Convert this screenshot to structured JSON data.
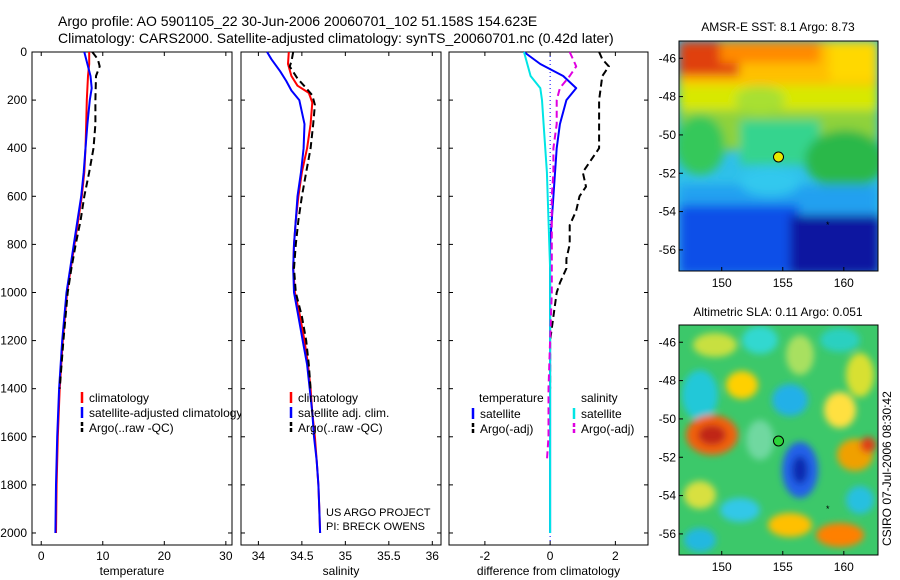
{
  "header": {
    "line1": "Argo profile: AO 5901105_22 30-Jun-2006 20060701_102 51.158S 154.623E",
    "line2": "Climatology: CARS2000. Satellite-adjusted climatology: synTS_20060701.nc (0.42d later)"
  },
  "credit": {
    "line1": "US ARGO PROJECT",
    "line2": "PI: BRECK OWENS"
  },
  "stamp": "CSIRO 07-Jul-2006 08:30:42",
  "colors": {
    "climatology": "#ff0000",
    "satellite": "#0000ff",
    "argo": "#000000",
    "sat_diff": "#00e5e5",
    "argo_diff": "#e000e0"
  },
  "chart_data": [
    {
      "id": "temperature",
      "type": "line",
      "xlabel": "temperature",
      "xlim": [
        -1.5,
        31
      ],
      "ylim": [
        2050,
        0
      ],
      "xticks": [
        0,
        10,
        20,
        30
      ],
      "yticks": [
        0,
        200,
        400,
        600,
        800,
        1000,
        1200,
        1400,
        1600,
        1800,
        2000
      ],
      "legend": {
        "items": [
          "climatology",
          "satellite-adjusted climatology",
          "Argo(..raw -QC)"
        ]
      },
      "series": [
        {
          "name": "climatology",
          "style": "solid",
          "color": "#ff0000",
          "points": [
            [
              7.8,
              0
            ],
            [
              7.8,
              50
            ],
            [
              7.6,
              100
            ],
            [
              7.4,
              200
            ],
            [
              7.3,
              300
            ],
            [
              7.2,
              400
            ],
            [
              7.0,
              500
            ],
            [
              6.6,
              600
            ],
            [
              6.0,
              700
            ],
            [
              5.4,
              800
            ],
            [
              4.8,
              900
            ],
            [
              4.2,
              1000
            ],
            [
              3.5,
              1200
            ],
            [
              3.0,
              1400
            ],
            [
              2.7,
              1600
            ],
            [
              2.5,
              1800
            ],
            [
              2.4,
              2000
            ]
          ]
        },
        {
          "name": "satellite-adjusted climatology",
          "style": "solid",
          "color": "#0000ff",
          "points": [
            [
              7.0,
              0
            ],
            [
              7.5,
              50
            ],
            [
              8.0,
              100
            ],
            [
              8.2,
              150
            ],
            [
              7.9,
              200
            ],
            [
              7.5,
              300
            ],
            [
              7.2,
              400
            ],
            [
              6.9,
              500
            ],
            [
              6.5,
              600
            ],
            [
              5.9,
              700
            ],
            [
              5.3,
              800
            ],
            [
              4.7,
              900
            ],
            [
              4.1,
              1000
            ],
            [
              3.4,
              1200
            ],
            [
              2.9,
              1400
            ],
            [
              2.6,
              1600
            ],
            [
              2.4,
              1800
            ],
            [
              2.3,
              2000
            ]
          ]
        },
        {
          "name": "Argo(..raw -QC)",
          "style": "dashed",
          "color": "#000000",
          "points": [
            [
              8.3,
              0
            ],
            [
              9.2,
              30
            ],
            [
              9.5,
              60
            ],
            [
              8.9,
              100
            ],
            [
              8.8,
              200
            ],
            [
              8.8,
              300
            ],
            [
              8.5,
              400
            ],
            [
              7.8,
              500
            ],
            [
              7.0,
              600
            ],
            [
              6.4,
              700
            ],
            [
              5.6,
              800
            ],
            [
              4.9,
              900
            ],
            [
              4.3,
              1000
            ],
            [
              3.6,
              1200
            ],
            [
              3.0,
              1400
            ]
          ]
        }
      ]
    },
    {
      "id": "salinity",
      "type": "line",
      "xlabel": "salinity",
      "xlim": [
        33.8,
        36.1
      ],
      "ylim": [
        2050,
        0
      ],
      "xticks": [
        34,
        34.5,
        35,
        35.5,
        36
      ],
      "yticks": [
        0,
        200,
        400,
        600,
        800,
        1000,
        1200,
        1400,
        1600,
        1800,
        2000
      ],
      "legend": {
        "items": [
          "climatology",
          "satellite adj. clim.",
          "Argo(..raw -QC)"
        ]
      },
      "series": [
        {
          "name": "climatology",
          "style": "solid",
          "color": "#ff0000",
          "points": [
            [
              34.35,
              0
            ],
            [
              34.34,
              50
            ],
            [
              34.38,
              100
            ],
            [
              34.45,
              140
            ],
            [
              34.58,
              170
            ],
            [
              34.62,
              210
            ],
            [
              34.6,
              300
            ],
            [
              34.56,
              400
            ],
            [
              34.5,
              500
            ],
            [
              34.46,
              600
            ],
            [
              34.43,
              700
            ],
            [
              34.41,
              800
            ],
            [
              34.4,
              900
            ],
            [
              34.42,
              1000
            ],
            [
              34.48,
              1100
            ],
            [
              34.53,
              1200
            ],
            [
              34.57,
              1300
            ],
            [
              34.6,
              1400
            ],
            [
              34.62,
              1500
            ],
            [
              34.65,
              1600
            ],
            [
              34.67,
              1700
            ],
            [
              34.69,
              1800
            ],
            [
              34.7,
              1900
            ],
            [
              34.71,
              2000
            ]
          ]
        },
        {
          "name": "satellite adj. clim.",
          "style": "solid",
          "color": "#0000ff",
          "points": [
            [
              34.1,
              0
            ],
            [
              34.15,
              30
            ],
            [
              34.25,
              80
            ],
            [
              34.32,
              120
            ],
            [
              34.38,
              160
            ],
            [
              34.47,
              200
            ],
            [
              34.53,
              300
            ],
            [
              34.52,
              400
            ],
            [
              34.49,
              500
            ],
            [
              34.45,
              600
            ],
            [
              34.43,
              700
            ],
            [
              34.41,
              800
            ],
            [
              34.4,
              900
            ],
            [
              34.41,
              1000
            ],
            [
              34.46,
              1100
            ],
            [
              34.51,
              1200
            ],
            [
              34.56,
              1300
            ],
            [
              34.59,
              1400
            ],
            [
              34.62,
              1500
            ],
            [
              34.64,
              1600
            ],
            [
              34.67,
              1700
            ],
            [
              34.69,
              1800
            ],
            [
              34.7,
              1900
            ],
            [
              34.71,
              2000
            ]
          ]
        },
        {
          "name": "Argo(..raw -QC)",
          "style": "dashed",
          "color": "#000000",
          "points": [
            [
              34.4,
              0
            ],
            [
              34.38,
              40
            ],
            [
              34.36,
              60
            ],
            [
              34.45,
              110
            ],
            [
              34.55,
              150
            ],
            [
              34.62,
              180
            ],
            [
              34.65,
              220
            ],
            [
              34.63,
              300
            ],
            [
              34.6,
              400
            ],
            [
              34.55,
              500
            ],
            [
              34.5,
              600
            ],
            [
              34.46,
              700
            ],
            [
              34.43,
              800
            ],
            [
              34.41,
              900
            ],
            [
              34.43,
              1000
            ],
            [
              34.5,
              1100
            ],
            [
              34.55,
              1200
            ],
            [
              34.58,
              1300
            ],
            [
              34.6,
              1400
            ]
          ]
        }
      ]
    },
    {
      "id": "difference",
      "type": "line",
      "xlabel": "difference from climatology",
      "xlim": [
        -3.1,
        3.0
      ],
      "ylim": [
        2050,
        0
      ],
      "xticks": [
        -2,
        0,
        2
      ],
      "yticks": [
        0,
        200,
        400,
        600,
        800,
        1000,
        1200,
        1400,
        1600,
        1800,
        2000
      ],
      "legend": {
        "temperature_header": "temperature",
        "salinity_header": "salinity",
        "temperature_items": [
          "satellite",
          "Argo(-adj)"
        ],
        "salinity_items": [
          "satellite",
          "Argo(-adj)"
        ]
      },
      "series": [
        {
          "name": "temperature satellite",
          "style": "solid",
          "color": "#0000ff",
          "points": [
            [
              -0.8,
              0
            ],
            [
              -0.3,
              50
            ],
            [
              0.4,
              100
            ],
            [
              0.8,
              150
            ],
            [
              0.5,
              200
            ],
            [
              0.3,
              300
            ],
            [
              0.2,
              400
            ],
            [
              0.1,
              600
            ],
            [
              0.0,
              800
            ],
            [
              0.0,
              1000
            ],
            [
              0.0,
              1400
            ],
            [
              0.0,
              2000
            ]
          ]
        },
        {
          "name": "temperature Argo(-adj)",
          "style": "dashed",
          "color": "#000000",
          "points": [
            [
              1.5,
              0
            ],
            [
              1.6,
              30
            ],
            [
              1.8,
              60
            ],
            [
              1.6,
              100
            ],
            [
              1.55,
              150
            ],
            [
              1.5,
              200
            ],
            [
              1.5,
              300
            ],
            [
              1.5,
              400
            ],
            [
              1.0,
              500
            ],
            [
              1.1,
              560
            ],
            [
              0.9,
              600
            ],
            [
              0.8,
              660
            ],
            [
              0.6,
              720
            ],
            [
              0.6,
              800
            ],
            [
              0.5,
              860
            ],
            [
              0.5,
              900
            ],
            [
              0.3,
              960
            ],
            [
              0.2,
              1000
            ],
            [
              0.1,
              1100
            ],
            [
              0.0,
              1200
            ],
            [
              0.0,
              1400
            ]
          ]
        },
        {
          "name": "salinity satellite",
          "style": "solid",
          "color": "#00e5e5",
          "points": [
            [
              -0.8,
              0
            ],
            [
              -0.7,
              50
            ],
            [
              -0.6,
              100
            ],
            [
              -0.3,
              150
            ],
            [
              -0.25,
              200
            ],
            [
              -0.2,
              300
            ],
            [
              -0.1,
              500
            ],
            [
              -0.05,
              700
            ],
            [
              0.0,
              900
            ],
            [
              0.0,
              1100
            ],
            [
              0.0,
              2000
            ]
          ]
        },
        {
          "name": "salinity Argo(-adj)",
          "style": "dashed",
          "color": "#e000e0",
          "points": [
            [
              0.6,
              0
            ],
            [
              0.7,
              30
            ],
            [
              0.8,
              60
            ],
            [
              0.6,
              100
            ],
            [
              0.3,
              150
            ],
            [
              0.2,
              200
            ],
            [
              0.2,
              300
            ],
            [
              0.1,
              400
            ],
            [
              0.1,
              500
            ],
            [
              0.05,
              600
            ],
            [
              0.05,
              800
            ],
            [
              0.05,
              1000
            ],
            [
              0.0,
              1200
            ],
            [
              -0.05,
              1400
            ],
            [
              -0.05,
              1600
            ],
            [
              -0.1,
              1700
            ]
          ]
        }
      ]
    },
    {
      "id": "amsre-map",
      "type": "heatmap",
      "title": "AMSR-E SST: 8.1 Argo: 8.73",
      "xlim": [
        146.5,
        162.8
      ],
      "ylim": [
        -57.1,
        -45.1
      ],
      "xticks": [
        150,
        155,
        160
      ],
      "yticks": [
        -46,
        -48,
        -50,
        -52,
        -54,
        -56
      ],
      "float_position": [
        154.623,
        -51.158
      ],
      "track_position": [
        158.8,
        -54.8
      ]
    },
    {
      "id": "altimetric-map",
      "type": "heatmap",
      "title": "Altimetric SLA: 0.11 Argo: 0.051",
      "xlim": [
        146.5,
        162.8
      ],
      "ylim": [
        -57.1,
        -45.1
      ],
      "xticks": [
        150,
        155,
        160
      ],
      "yticks": [
        -46,
        -48,
        -50,
        -52,
        -54,
        -56
      ],
      "float_position": [
        154.623,
        -51.158
      ],
      "track_position": [
        158.8,
        -54.8
      ]
    }
  ]
}
